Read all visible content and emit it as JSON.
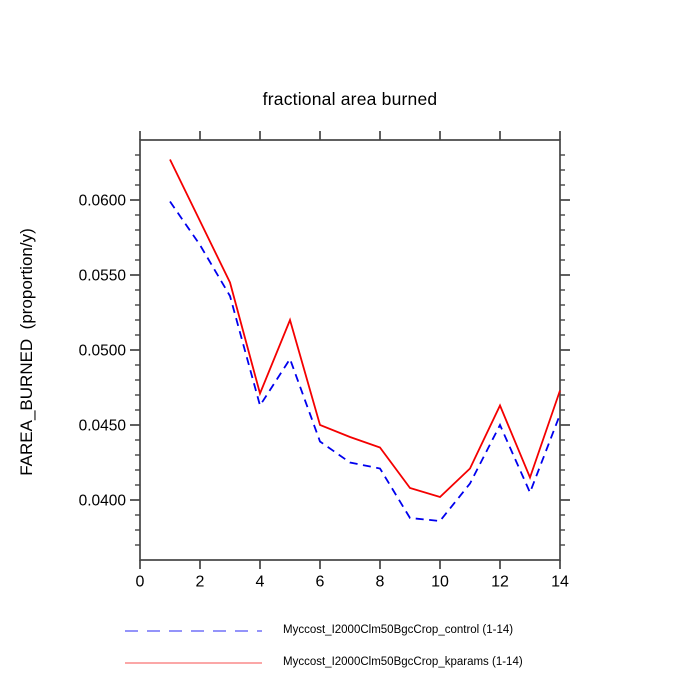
{
  "chart_data": {
    "type": "line",
    "title": "fractional area burned",
    "ylabel": "FAREA_BURNED  (proportion/y)",
    "xlabel": "",
    "x": [
      1,
      2,
      3,
      4,
      5,
      6,
      7,
      8,
      9,
      10,
      11,
      12,
      13,
      14
    ],
    "series": [
      {
        "name": "Myccost_I2000Clm50BgcCrop_control (1-14)",
        "color": "#0000ee",
        "legend_color": "#7070f8",
        "style": "dashed",
        "values": [
          0.0599,
          0.057,
          0.0536,
          0.0463,
          0.0494,
          0.0439,
          0.0425,
          0.0421,
          0.0388,
          0.0386,
          0.0411,
          0.045,
          0.0405,
          0.0457
        ]
      },
      {
        "name": "Myccost_I2000Clm50BgcCrop_kparams (1-14)",
        "color": "#f40000",
        "legend_color": "#fa8a8a",
        "style": "solid",
        "values": [
          0.0627,
          0.0586,
          0.0545,
          0.0471,
          0.052,
          0.045,
          0.0442,
          0.0435,
          0.0408,
          0.0402,
          0.0421,
          0.0463,
          0.0415,
          0.0473
        ]
      }
    ],
    "xlim": [
      0,
      14
    ],
    "ylim": [
      0.036,
      0.064
    ],
    "x_major_ticks": [
      0,
      2,
      4,
      6,
      8,
      10,
      12,
      14
    ],
    "x_tick_labels": [
      "0",
      "2",
      "4",
      "6",
      "8",
      "10",
      "12",
      "14"
    ],
    "y_major_ticks": [
      0.04,
      0.045,
      0.05,
      0.055,
      0.06
    ],
    "y_tick_labels": [
      "0.0400",
      "0.0450",
      "0.0500",
      "0.0550",
      "0.0600"
    ],
    "y_minor_step": 0.001,
    "grid": false,
    "legend_position": "bottom",
    "axis_color": "#444444",
    "text_color": "#000000"
  }
}
